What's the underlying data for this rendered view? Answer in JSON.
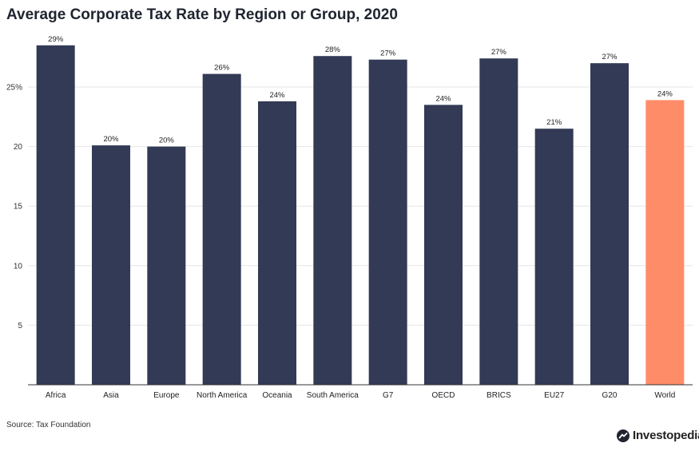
{
  "title": "Average Corporate Tax Rate by Region or Group, 2020",
  "source": "Source: Tax Foundation",
  "brand": "Investopedia",
  "chart_data": {
    "type": "bar",
    "title": "Average Corporate Tax Rate by Region or Group, 2020",
    "xlabel": "",
    "ylabel": "",
    "ylim": [
      0,
      29
    ],
    "yticks": [
      5,
      10,
      15,
      20,
      25
    ],
    "ytick_labels": [
      "5",
      "10",
      "15",
      "20",
      "25%"
    ],
    "categories": [
      "Africa",
      "Asia",
      "Europe",
      "North America",
      "Oceania",
      "South America",
      "G7",
      "OECD",
      "BRICS",
      "EU27",
      "G20",
      "World"
    ],
    "values": [
      28.5,
      20.1,
      20.0,
      26.1,
      23.8,
      27.6,
      27.3,
      23.5,
      27.4,
      21.5,
      27.0,
      23.9
    ],
    "data_labels": [
      "29%",
      "20%",
      "20%",
      "26%",
      "24%",
      "28%",
      "27%",
      "24%",
      "27%",
      "21%",
      "27%",
      "24%"
    ],
    "highlight": "World",
    "colors": {
      "bar": "#323a55",
      "highlight": "#ff8c69",
      "grid": "#e6e6e6",
      "axis": "#333333"
    }
  }
}
